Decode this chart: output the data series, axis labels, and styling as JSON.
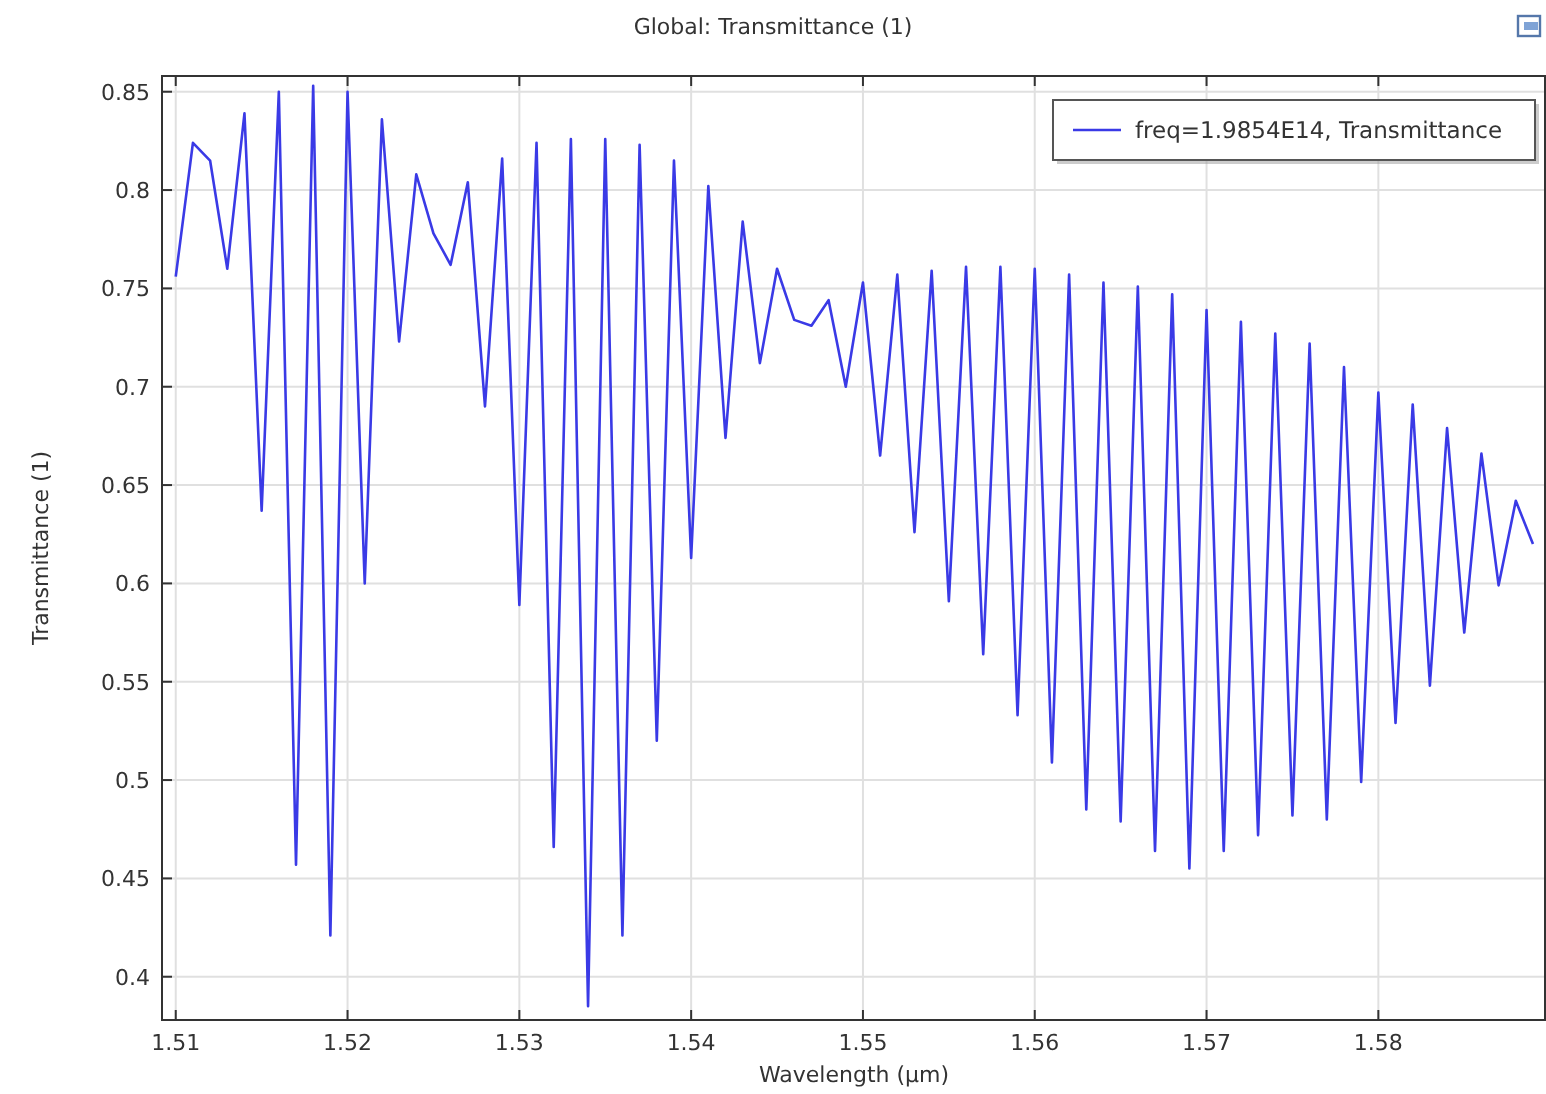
{
  "chart_data": {
    "type": "line",
    "title": "Global: Transmittance (1)",
    "xlabel": "Wavelength (µm)",
    "ylabel": "Transmittance (1)",
    "xlim": [
      1.5092,
      1.5897
    ],
    "ylim": [
      0.378,
      0.858
    ],
    "xticks": [
      1.51,
      1.52,
      1.53,
      1.54,
      1.55,
      1.56,
      1.57,
      1.58
    ],
    "yticks": [
      0.4,
      0.45,
      0.5,
      0.55,
      0.6,
      0.65,
      0.7,
      0.75,
      0.8,
      0.85
    ],
    "grid": true,
    "legend": "top right",
    "marker": "none",
    "line_style": "solid",
    "x": [
      1.51,
      1.511,
      1.512,
      1.513,
      1.514,
      1.515,
      1.516,
      1.517,
      1.518,
      1.519,
      1.52,
      1.521,
      1.522,
      1.523,
      1.524,
      1.525,
      1.526,
      1.527,
      1.528,
      1.529,
      1.53,
      1.531,
      1.532,
      1.533,
      1.534,
      1.535,
      1.536,
      1.537,
      1.538,
      1.539,
      1.54,
      1.541,
      1.542,
      1.543,
      1.544,
      1.545,
      1.546,
      1.547,
      1.548,
      1.549,
      1.55,
      1.551,
      1.552,
      1.553,
      1.554,
      1.555,
      1.556,
      1.557,
      1.558,
      1.559,
      1.56,
      1.561,
      1.562,
      1.563,
      1.564,
      1.565,
      1.566,
      1.567,
      1.568,
      1.569,
      1.57,
      1.571,
      1.572,
      1.573,
      1.574,
      1.575,
      1.576,
      1.577,
      1.578,
      1.579,
      1.58,
      1.581,
      1.582,
      1.583,
      1.584,
      1.585,
      1.586,
      1.587,
      1.588,
      1.589
    ],
    "series": [
      {
        "name": "freq=1.9854E14, Transmittance",
        "color": "#3a3ae6",
        "values": [
          0.756,
          0.824,
          0.815,
          0.76,
          0.839,
          0.637,
          0.85,
          0.457,
          0.853,
          0.421,
          0.85,
          0.6,
          0.836,
          0.723,
          0.808,
          0.778,
          0.762,
          0.804,
          0.69,
          0.816,
          0.589,
          0.824,
          0.466,
          0.826,
          0.385,
          0.826,
          0.421,
          0.823,
          0.52,
          0.815,
          0.613,
          0.802,
          0.674,
          0.784,
          0.712,
          0.76,
          0.734,
          0.731,
          0.744,
          0.7,
          0.753,
          0.665,
          0.757,
          0.626,
          0.759,
          0.591,
          0.761,
          0.564,
          0.761,
          0.533,
          0.76,
          0.509,
          0.757,
          0.485,
          0.753,
          0.479,
          0.751,
          0.464,
          0.747,
          0.455,
          0.739,
          0.464,
          0.733,
          0.472,
          0.727,
          0.482,
          0.722,
          0.48,
          0.71,
          0.499,
          0.697,
          0.529,
          0.691,
          0.548,
          0.679,
          0.575,
          0.666,
          0.599,
          0.642,
          0.62
        ]
      }
    ]
  }
}
